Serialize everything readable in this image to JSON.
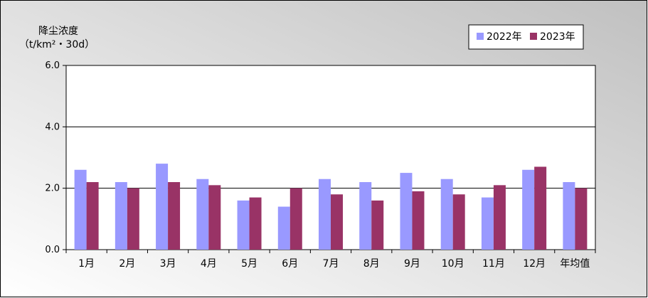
{
  "chart_data": {
    "type": "bar",
    "ylabel": "降尘浓度",
    "yunit": "（t/km²・30d）",
    "categories": [
      "1月",
      "2月",
      "3月",
      "4月",
      "5月",
      "6月",
      "7月",
      "8月",
      "9月",
      "10月",
      "11月",
      "12月",
      "年均值"
    ],
    "series": [
      {
        "name": "2022年",
        "color": "#9999FF",
        "values": [
          2.6,
          2.2,
          2.8,
          2.3,
          1.6,
          1.4,
          2.3,
          2.2,
          2.5,
          2.3,
          1.7,
          2.6,
          2.2
        ]
      },
      {
        "name": "2023年",
        "color": "#993366",
        "values": [
          2.2,
          2.0,
          2.2,
          2.1,
          1.7,
          2.0,
          1.8,
          1.6,
          1.9,
          1.8,
          2.1,
          2.7,
          2.0
        ]
      }
    ],
    "ylim": [
      0,
      6
    ],
    "yticks": [
      "0.0",
      "2.0",
      "4.0",
      "6.0"
    ],
    "grid": true,
    "legend_position": "top-right",
    "colors": {
      "plot_background": "#FFFFFF",
      "chart_background_from": "#C0C0C0",
      "chart_background_to": "#FFFFFF"
    }
  }
}
